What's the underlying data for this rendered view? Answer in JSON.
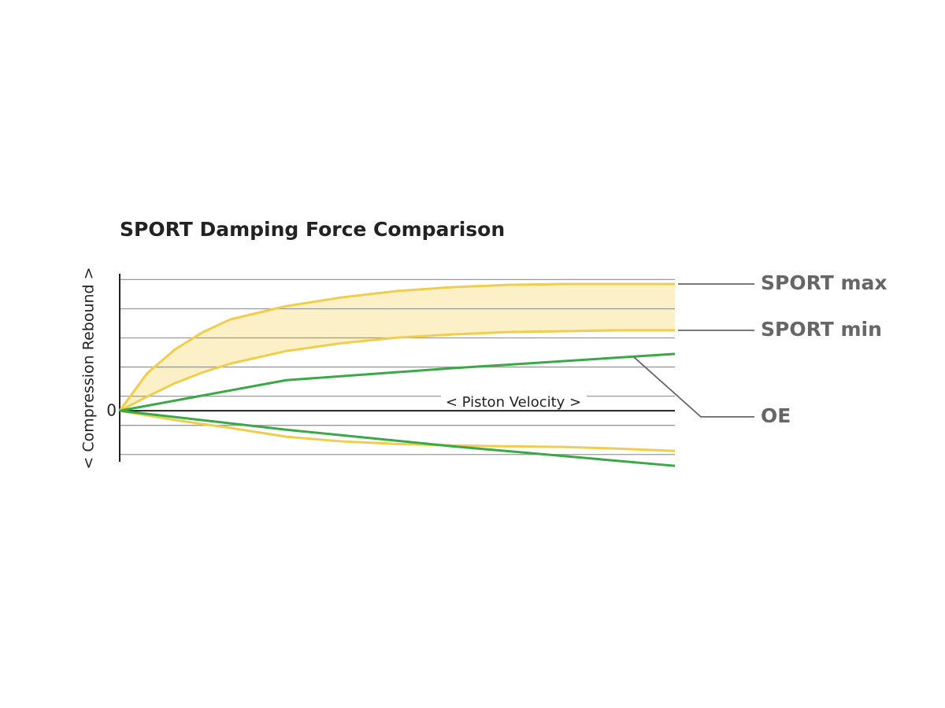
{
  "chart_data": {
    "type": "line",
    "title": "SPORT Damping Force Comparison",
    "x_label": "< Piston Velocity >",
    "y_label": "< Compression Rebound >",
    "xlim": [
      0,
      100
    ],
    "ylim": [
      -1.75,
      4.7
    ],
    "yticks": [
      0
    ],
    "grid_lines": [
      -1.5,
      -0.5,
      0.5,
      1.5,
      2.5,
      3.5,
      4.5
    ],
    "band_color": "#fbf0c6",
    "series": [
      {
        "name": "SPORT max",
        "color": "#f0cd4c",
        "x": [
          0,
          5,
          10,
          15,
          20,
          30,
          40,
          50,
          60,
          70,
          80,
          90,
          100
        ],
        "values": [
          0,
          1.3,
          2.11,
          2.7,
          3.14,
          3.59,
          3.89,
          4.11,
          4.24,
          4.32,
          4.35,
          4.35,
          4.35
        ]
      },
      {
        "name": "SPORT min",
        "color": "#f0cd4c",
        "x": [
          0,
          5,
          10,
          15,
          20,
          30,
          40,
          50,
          60,
          70,
          80,
          90,
          100
        ],
        "values": [
          0,
          0.49,
          0.95,
          1.32,
          1.62,
          2.05,
          2.32,
          2.51,
          2.62,
          2.7,
          2.73,
          2.76,
          2.76
        ]
      },
      {
        "name": "OE",
        "color": "#3aa846",
        "x": [
          0,
          30,
          60,
          100
        ],
        "values": [
          0,
          1.05,
          1.46,
          1.95
        ]
      },
      {
        "color": "#f0cd4c",
        "x": [
          0,
          10,
          20,
          30,
          40,
          50,
          60,
          70,
          80,
          90,
          100
        ],
        "values": [
          0,
          -0.32,
          -0.59,
          -0.89,
          -1.05,
          -1.14,
          -1.19,
          -1.22,
          -1.24,
          -1.3,
          -1.38
        ]
      },
      {
        "color": "#3aa846",
        "x": [
          0,
          30,
          60,
          100
        ],
        "values": [
          0,
          -0.65,
          -1.22,
          -1.89
        ]
      }
    ]
  }
}
